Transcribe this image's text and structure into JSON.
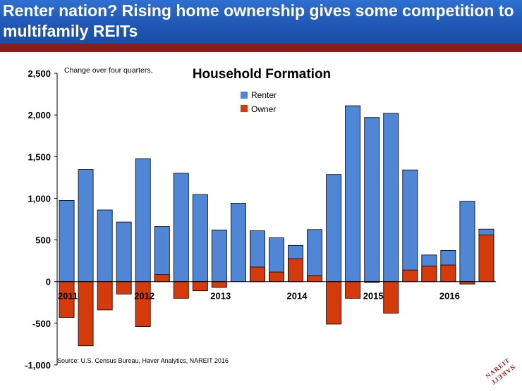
{
  "header": {
    "title": "Renter nation? Rising home ownership gives some competition to multifamily REITs"
  },
  "colors": {
    "banner": "#1f56b3",
    "stripe": "#8b1a1a",
    "renter": "#4f86d6",
    "owner": "#d43a0a"
  },
  "logo": {
    "text": "NAREIT"
  },
  "chart_data": {
    "type": "bar",
    "stacked": true,
    "title": "Household Formation",
    "subtitle": "Change over four quarters,",
    "source": "Source: U.S. Census Bureau, Haver Analytics, NAREIT 2016",
    "ylim": [
      -1000,
      2500
    ],
    "yticks": [
      -1000,
      -500,
      0,
      500,
      1000,
      1500,
      2000,
      2500
    ],
    "ytick_labels": [
      "-1,000",
      "-500",
      "0",
      "500",
      "1,000",
      "1,500",
      "2,000",
      "2,500"
    ],
    "grid": false,
    "legend": "top-center",
    "x_year_labels": [
      {
        "label": "2011",
        "index": 0
      },
      {
        "label": "2012",
        "index": 4
      },
      {
        "label": "2013",
        "index": 8
      },
      {
        "label": "2014",
        "index": 12
      },
      {
        "label": "2015",
        "index": 16
      },
      {
        "label": "2016",
        "index": 20
      }
    ],
    "series": [
      {
        "name": "Renter",
        "values": [
          975,
          1345,
          860,
          715,
          1475,
          660,
          1300,
          1045,
          620,
          940,
          610,
          525,
          435,
          625,
          1285,
          2110,
          1970,
          2020,
          1340,
          320,
          375,
          965,
          630
        ]
      },
      {
        "name": "Owner",
        "values": [
          -430,
          -770,
          -340,
          -150,
          -540,
          85,
          -200,
          -110,
          -70,
          0,
          175,
          115,
          275,
          70,
          -510,
          -200,
          -10,
          -380,
          140,
          185,
          200,
          -30,
          560
        ]
      }
    ]
  }
}
